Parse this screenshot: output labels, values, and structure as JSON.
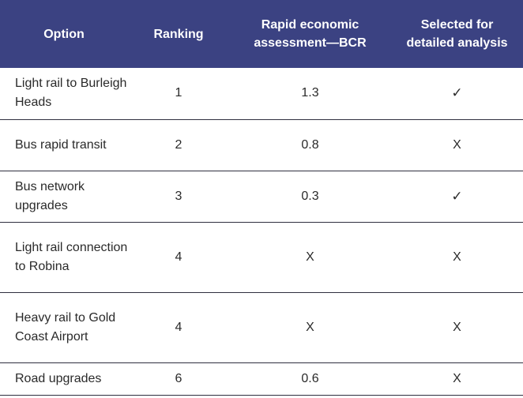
{
  "table": {
    "headers": {
      "option": "Option",
      "ranking": "Ranking",
      "bcr": "Rapid economic assessment—BCR",
      "selected": "Selected for detailed analysis"
    },
    "rows": [
      {
        "option": "Light rail to Burleigh Heads",
        "ranking": "1",
        "bcr": "1.3",
        "selected": "✓"
      },
      {
        "option": "Bus rapid transit",
        "ranking": "2",
        "bcr": "0.8",
        "selected": "X"
      },
      {
        "option": "Bus network upgrades",
        "ranking": "3",
        "bcr": "0.3",
        "selected": "✓"
      },
      {
        "option": "Light rail connection to Robina",
        "ranking": "4",
        "bcr": "X",
        "selected": "X"
      },
      {
        "option": "Heavy rail to Gold Coast Airport",
        "ranking": "4",
        "bcr": "X",
        "selected": "X"
      },
      {
        "option": "Road upgrades",
        "ranking": "6",
        "bcr": "0.6",
        "selected": "X"
      }
    ]
  },
  "colors": {
    "header_bg": "#3b4282",
    "header_text": "#ffffff",
    "row_divider": "#2f2f3f"
  }
}
